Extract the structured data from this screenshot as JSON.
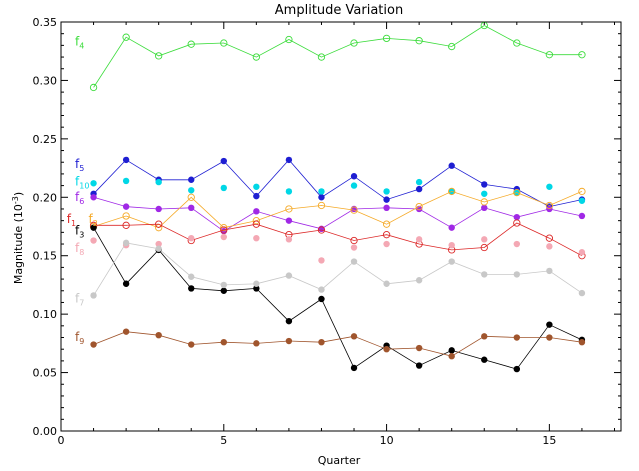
{
  "chart_data": {
    "type": "scatter",
    "title": "Amplitude Variation",
    "xlabel": "Quarter",
    "ylabel": {
      "base": "Magnitude (10",
      "sup": "-3",
      "end": ")"
    },
    "xlim": [
      0,
      17.2
    ],
    "ylim": [
      0,
      0.35
    ],
    "xticks": [
      0,
      5,
      10,
      15
    ],
    "xtick_labels": [
      "0",
      "5",
      "10",
      "15"
    ],
    "yticks": [
      0.0,
      0.05,
      0.1,
      0.15,
      0.2,
      0.25,
      0.3,
      0.35
    ],
    "ytick_labels": [
      "0.00",
      "0.05",
      "0.10",
      "0.15",
      "0.20",
      "0.25",
      "0.30",
      "0.35"
    ],
    "grid": false,
    "x": [
      1,
      2,
      3,
      4,
      5,
      6,
      7,
      8,
      9,
      10,
      11,
      12,
      13,
      14,
      15,
      16
    ],
    "series": [
      {
        "name": "f4",
        "label_base": "f",
        "label_sub": "4",
        "color": "#3cdc3c",
        "marker": "open",
        "line": true,
        "label_at": [
          0.095,
          0.33
        ],
        "values": [
          0.294,
          0.337,
          0.321,
          0.331,
          0.332,
          0.32,
          0.335,
          0.32,
          0.332,
          0.336,
          0.334,
          0.329,
          0.347,
          0.332,
          0.322,
          0.322
        ]
      },
      {
        "name": "f5",
        "label_base": "f",
        "label_sub": "5",
        "color": "#1e1ed2",
        "marker": "filled",
        "line": true,
        "label_at": [
          0.095,
          0.225
        ],
        "values": [
          0.203,
          0.232,
          0.215,
          0.215,
          0.231,
          0.201,
          0.232,
          0.2,
          0.218,
          0.198,
          0.207,
          0.227,
          0.211,
          0.207,
          0.192,
          0.198
        ]
      },
      {
        "name": "f10",
        "label_base": "f",
        "label_sub": "10",
        "color": "#00d7e6",
        "marker": "filled",
        "line": false,
        "label_at": [
          0.095,
          0.21
        ],
        "values": [
          0.212,
          0.214,
          0.213,
          0.206,
          0.208,
          0.209,
          0.205,
          0.205,
          0.21,
          0.205,
          0.213,
          0.205,
          0.203,
          0.204,
          0.209,
          0.197
        ]
      },
      {
        "name": "f6",
        "label_base": "f",
        "label_sub": "6",
        "color": "#a028e6",
        "marker": "filled",
        "line": true,
        "label_at": [
          0.095,
          0.197
        ],
        "values": [
          0.2,
          0.192,
          0.19,
          0.191,
          0.171,
          0.188,
          0.18,
          0.173,
          0.19,
          0.191,
          0.19,
          0.174,
          0.191,
          0.183,
          0.19,
          0.184
        ]
      },
      {
        "name": "f2",
        "label_base": "f",
        "label_sub": "2",
        "color": "#f5aa28",
        "marker": "open",
        "line": true,
        "label_at": [
          0.185,
          0.178
        ],
        "values": [
          0.175,
          0.184,
          0.174,
          0.2,
          0.174,
          0.18,
          0.19,
          0.193,
          0.189,
          0.177,
          0.192,
          0.205,
          0.196,
          0.204,
          0.193,
          0.205
        ]
      },
      {
        "name": "f1",
        "label_base": "f",
        "label_sub": "1",
        "color": "#dc2828",
        "marker": "open",
        "line": true,
        "label_at": [
          0.04,
          0.178
        ],
        "values": [
          0.176,
          0.176,
          0.177,
          0.163,
          0.172,
          0.177,
          0.168,
          0.172,
          0.163,
          0.168,
          0.16,
          0.155,
          0.157,
          0.178,
          0.165,
          0.15
        ]
      },
      {
        "name": "f3",
        "label_base": "f",
        "label_sub": "3",
        "color": "#000000",
        "marker": "filled",
        "line": true,
        "label_at": [
          0.095,
          0.168
        ],
        "values": [
          0.174,
          0.126,
          0.155,
          0.122,
          0.12,
          0.122,
          0.094,
          0.113,
          0.054,
          0.073,
          0.056,
          0.069,
          0.061,
          0.053,
          0.091,
          0.078
        ]
      },
      {
        "name": "f8",
        "label_base": "f",
        "label_sub": "8",
        "color": "#f4a8b4",
        "marker": "filled",
        "line": false,
        "label_at": [
          0.095,
          0.153
        ],
        "values": [
          0.163,
          0.159,
          0.16,
          0.165,
          0.166,
          0.165,
          0.164,
          0.146,
          0.157,
          0.16,
          0.164,
          0.159,
          0.164,
          0.16,
          0.158,
          0.153
        ]
      },
      {
        "name": "f7",
        "label_base": "f",
        "label_sub": "7",
        "color": "#c8c8c8",
        "marker": "filled",
        "line": true,
        "label_at": [
          0.095,
          0.11
        ],
        "values": [
          0.116,
          0.161,
          0.156,
          0.132,
          0.125,
          0.126,
          0.133,
          0.121,
          0.145,
          0.126,
          0.129,
          0.145,
          0.134,
          0.134,
          0.137,
          0.118
        ]
      },
      {
        "name": "f9",
        "label_base": "f",
        "label_sub": "9",
        "color": "#a0552d",
        "marker": "filled",
        "line": true,
        "label_at": [
          0.095,
          0.077
        ],
        "values": [
          0.074,
          0.085,
          0.082,
          0.074,
          0.076,
          0.075,
          0.077,
          0.076,
          0.081,
          0.07,
          0.071,
          0.064,
          0.081,
          0.08,
          0.08,
          0.076
        ]
      }
    ]
  }
}
